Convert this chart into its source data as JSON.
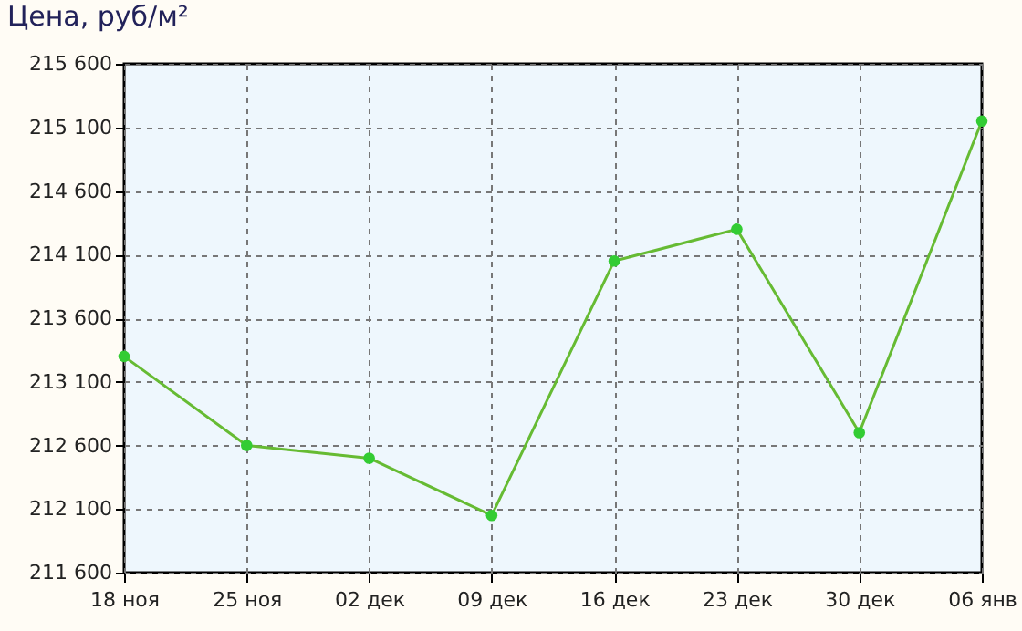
{
  "chart_data": {
    "type": "line",
    "title": "Цена, руб/м²",
    "categories": [
      "18 ноя",
      "25 ноя",
      "02 дек",
      "09 дек",
      "16 дек",
      "23 дек",
      "30 дек",
      "06 янв"
    ],
    "series": [
      {
        "color": "#66bb33",
        "values": [
          213300,
          212600,
          212500,
          212050,
          214050,
          214300,
          212700,
          215150
        ]
      }
    ],
    "ylim": [
      211600,
      215600
    ],
    "yticks": [
      {
        "value": 211600,
        "label": "211 600"
      },
      {
        "value": 212100,
        "label": "212 100"
      },
      {
        "value": 212600,
        "label": "212 600"
      },
      {
        "value": 213100,
        "label": "213 100"
      },
      {
        "value": 213600,
        "label": "213 600"
      },
      {
        "value": 214100,
        "label": "214 100"
      },
      {
        "value": 214600,
        "label": "214 600"
      },
      {
        "value": 215100,
        "label": "215 100"
      },
      {
        "value": 215600,
        "label": "215 600"
      }
    ],
    "grid": true,
    "marker": "circle",
    "line_style": "solid"
  }
}
